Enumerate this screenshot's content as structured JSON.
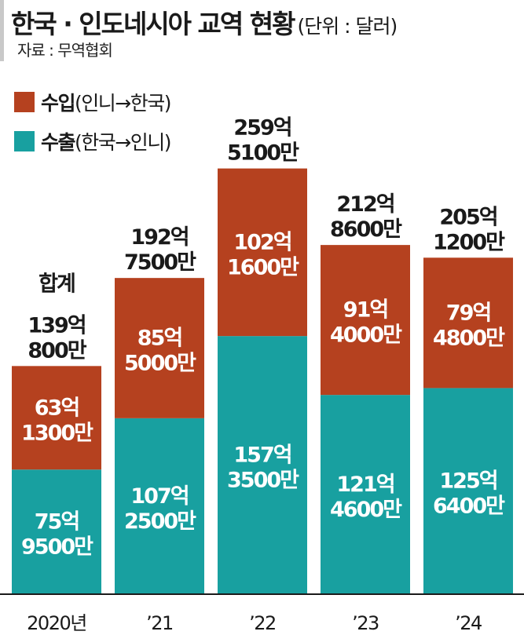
{
  "header": {
    "title": "한국 · 인도네시아 교역 현황",
    "unit": "(단위 : 달러)",
    "source": "자료 : 무역협회"
  },
  "legend": [
    {
      "label_bold": "수입",
      "label_rest": "(인니→한국)",
      "color": "#b5411f"
    },
    {
      "label_bold": "수출",
      "label_rest": "(한국→인니)",
      "color": "#18a0a0"
    }
  ],
  "total_prefix": "합계",
  "chart_data": {
    "type": "bar",
    "stacked": true,
    "categories": [
      "2020년",
      "'21",
      "'22",
      "'23",
      "'24"
    ],
    "series": [
      {
        "name": "수출(한국→인니)",
        "color": "#18a0a0",
        "values": [
          75.95,
          107.25,
          157.35,
          121.46,
          125.64
        ],
        "labels": [
          [
            "75억",
            "9500만"
          ],
          [
            "107억",
            "2500만"
          ],
          [
            "157억",
            "3500만"
          ],
          [
            "121억",
            "4600만"
          ],
          [
            "125억",
            "6400만"
          ]
        ]
      },
      {
        "name": "수입(인니→한국)",
        "color": "#b5411f",
        "values": [
          63.13,
          85.5,
          102.16,
          91.4,
          79.48
        ],
        "labels": [
          [
            "63억",
            "1300만"
          ],
          [
            "85억",
            "5000만"
          ],
          [
            "102억",
            "1600만"
          ],
          [
            "91억",
            "4000만"
          ],
          [
            "79억",
            "4800만"
          ]
        ]
      }
    ],
    "totals": [
      139.08,
      192.75,
      259.51,
      212.86,
      205.12
    ],
    "total_labels": [
      [
        "139억",
        "800만"
      ],
      [
        "192억",
        "7500만"
      ],
      [
        "259억",
        "5100만"
      ],
      [
        "212억",
        "8600만"
      ],
      [
        "205억",
        "1200만"
      ]
    ]
  }
}
